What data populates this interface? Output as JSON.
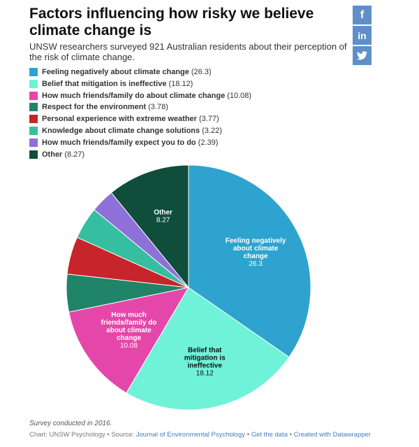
{
  "header": {
    "title": "Factors influencing how risky we believe climate change is",
    "subtitle": "UNSW researchers surveyed 921 Australian residents about their perception of the risk of climate change."
  },
  "share_buttons": [
    {
      "icon": "facebook-icon",
      "glyph": "f"
    },
    {
      "icon": "linkedin-icon",
      "glyph": "in"
    },
    {
      "icon": "twitter-icon",
      "glyph": ""
    }
  ],
  "chart_data": {
    "type": "pie",
    "title": "Factors influencing how risky we believe climate change is",
    "legend_position": "top-left",
    "start_angle_degrees": 0,
    "direction": "clockwise",
    "slices": [
      {
        "label": "Feeling negatively about climate change",
        "value": 26.3,
        "color": "#2ea3cf",
        "slice_label": [
          "Feeling negatively",
          "about climate",
          "change"
        ],
        "label_color": "#ffffff",
        "show_label": true
      },
      {
        "label": "Belief that mitigation is ineffective",
        "value": 18.12,
        "color": "#6ff2d8",
        "slice_label": [
          "Belief that",
          "mitigation is",
          "ineffective"
        ],
        "label_color": "#111111",
        "show_label": true
      },
      {
        "label": "How much friends/family do about climate change",
        "value": 10.08,
        "color": "#e447a9",
        "slice_label": [
          "How much",
          "friends/family do",
          "about climate",
          "change"
        ],
        "label_color": "#ffffff",
        "show_label": true
      },
      {
        "label": "Respect for the environment",
        "value": 3.78,
        "color": "#1f8468",
        "slice_label": [],
        "label_color": "#ffffff",
        "show_label": false
      },
      {
        "label": "Personal experience with extreme weather",
        "value": 3.77,
        "color": "#c7242b",
        "slice_label": [],
        "label_color": "#ffffff",
        "show_label": false
      },
      {
        "label": "Knowledge about climate change solutions",
        "value": 3.22,
        "color": "#35bfa0",
        "slice_label": [],
        "label_color": "#ffffff",
        "show_label": false
      },
      {
        "label": "How much friends/family expect you to do",
        "value": 2.39,
        "color": "#8d71d9",
        "slice_label": [],
        "label_color": "#ffffff",
        "show_label": false
      },
      {
        "label": "Other",
        "value": 8.27,
        "color": "#0f4e3b",
        "slice_label": [
          "Other"
        ],
        "label_color": "#ffffff",
        "show_label": true
      }
    ]
  },
  "footer": {
    "note": "Survey conducted in 2016.",
    "chart_credit": "Chart: UNSW Psychology",
    "source_prefix": "Source:",
    "source_link": "Journal of Environmental Psychology",
    "get_data": "Get the data",
    "created_with": "Created with Datawrapper",
    "separator": "•"
  }
}
